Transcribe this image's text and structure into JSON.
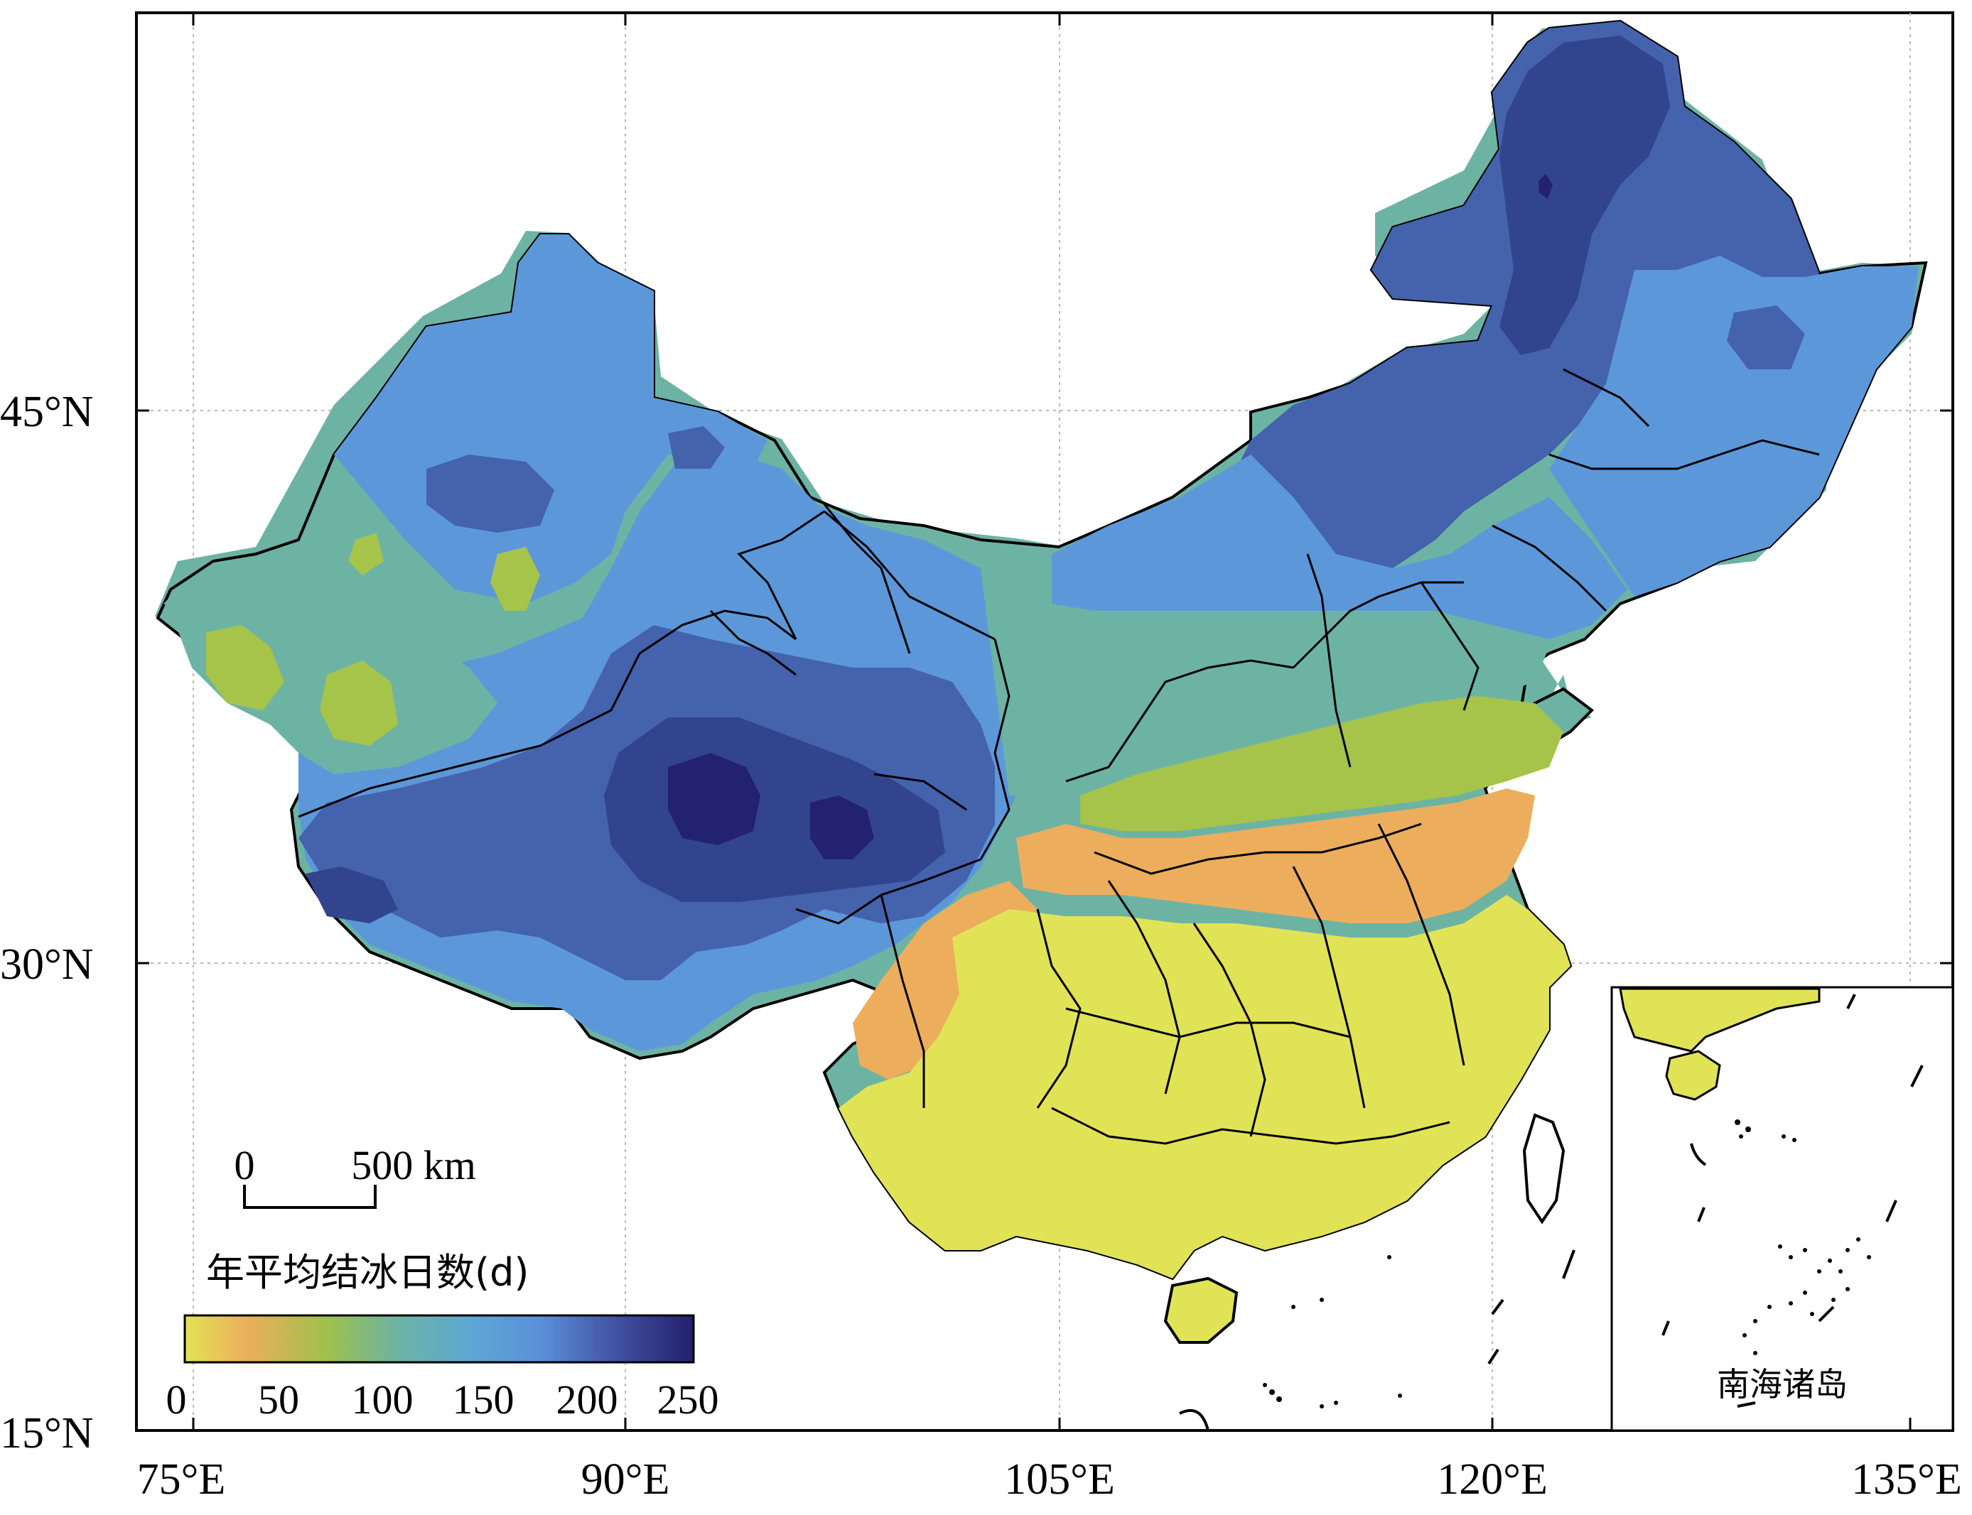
{
  "map": {
    "grid_lines": true,
    "longitude_labels": [
      "75°E",
      "90°E",
      "105°E",
      "120°E",
      "135°E"
    ],
    "latitude_labels": [
      "45°N",
      "30°N",
      "15°N"
    ],
    "scale_bar": {
      "start_label": "0",
      "end_label": "500 km"
    },
    "inset_label": "南海诸岛"
  },
  "legend": {
    "title": "年平均结冰日数(d)",
    "ticks": [
      "0",
      "50",
      "100",
      "150",
      "200",
      "250"
    ],
    "min": 0,
    "max": 250,
    "colors": [
      "#e1e357",
      "#eab05a",
      "#9fc04b",
      "#6fb3a5",
      "#5b9ad8",
      "#4566ae",
      "#2f3f8e",
      "#24206e"
    ]
  },
  "colors": {
    "class_0_25": "#e1e357",
    "class_25_50": "#ecae5c",
    "class_50_75": "#a6c44a",
    "class_75_125": "#6db3a4",
    "class_125_175": "#5c98d9",
    "class_175_200": "#4562ad",
    "class_200_225": "#33448f",
    "class_225_250": "#232270"
  }
}
